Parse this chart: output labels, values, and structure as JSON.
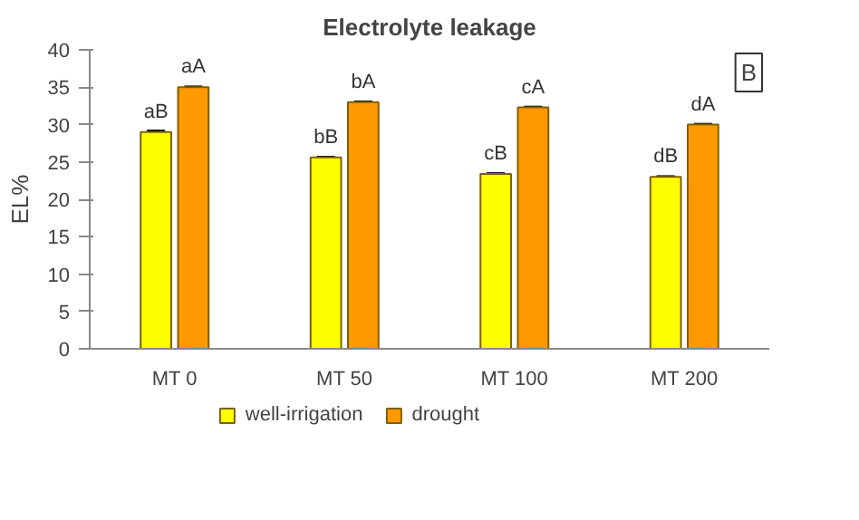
{
  "chart_data": {
    "type": "bar",
    "title": "Electrolyte leakage",
    "ylabel": "EL%",
    "categories": [
      "MT 0",
      "MT 50",
      "MT 100",
      "MT 200"
    ],
    "series": [
      {
        "name": "well-irrigation",
        "color": "#ffff00",
        "values": [
          29,
          25.6,
          23.4,
          23
        ],
        "errors": [
          0.2,
          0.1,
          0.1,
          0.1
        ],
        "value_labels": [
          "aB",
          "bB",
          "cB",
          "dB"
        ]
      },
      {
        "name": "drought",
        "color": "#ff9900",
        "values": [
          35,
          33,
          32.3,
          30
        ],
        "errors": [
          0.1,
          0.1,
          0.1,
          0.1
        ],
        "value_labels": [
          "aA",
          "bA",
          "cA",
          "dA"
        ]
      }
    ],
    "ylim": [
      0,
      40
    ],
    "yticks": [
      0,
      5,
      10,
      15,
      20,
      25,
      30,
      35,
      40
    ],
    "grid": false,
    "legend": "bottom",
    "annotations": [
      "B"
    ]
  }
}
